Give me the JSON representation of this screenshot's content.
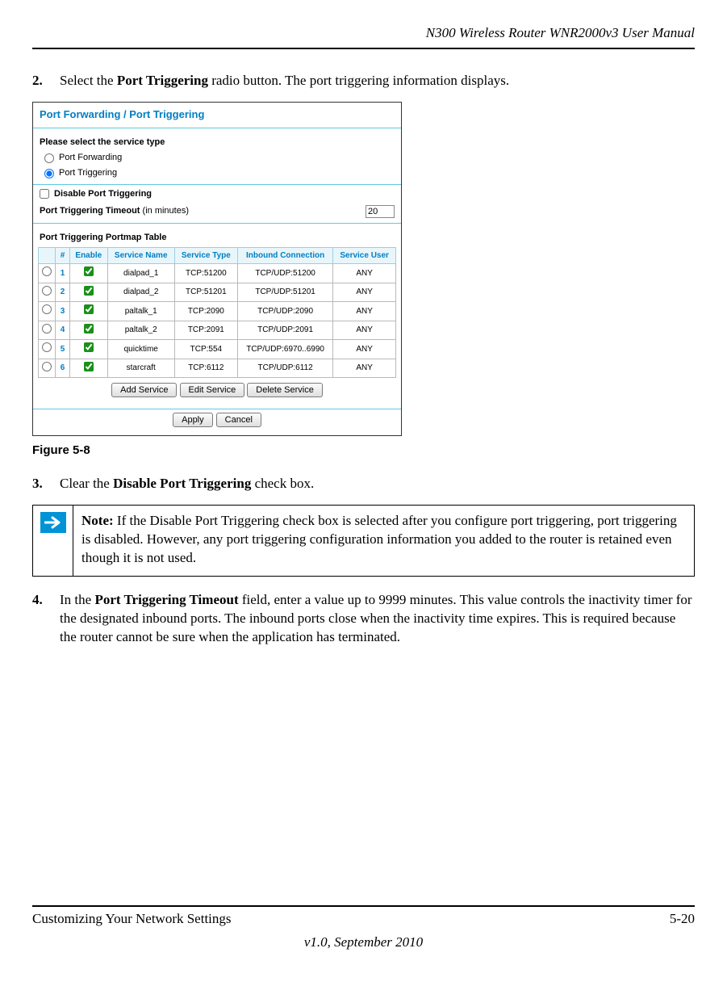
{
  "doc": {
    "header_title": "N300 Wireless Router WNR2000v3 User Manual",
    "footer_left": "Customizing Your Network Settings",
    "footer_right": "5-20",
    "footer_center": "v1.0, September 2010",
    "figure_caption": "Figure 5-8"
  },
  "steps": {
    "s2_num": "2.",
    "s2_pre": "Select the ",
    "s2_bold": "Port Triggering",
    "s2_post": " radio button. The port triggering information displays.",
    "s3_num": "3.",
    "s3_pre": "Clear the ",
    "s3_bold": "Disable Port Triggering",
    "s3_post": " check box.",
    "s4_num": "4.",
    "s4_pre": "In the ",
    "s4_bold": "Port Triggering Timeout",
    "s4_post": " field, enter a value up to 9999 minutes. This value controls the inactivity timer for the designated inbound ports. The inbound ports close when the inactivity time expires. This is required because the router cannot be sure when the application has terminated."
  },
  "note": {
    "label": "Note:",
    "text": " If the Disable Port Triggering check box is selected after you configure port triggering, port triggering is disabled. However, any port triggering configuration information you added to the router is retained even though it is not used.",
    "icon_bg": "#0093d6",
    "icon_fg": "#ffffff"
  },
  "ui": {
    "title": "Port Forwarding / Port Triggering",
    "select_label": "Please select the service type",
    "radio_fwd": "Port Forwarding",
    "radio_trg": "Port Triggering",
    "disable_label": "Disable Port Triggering",
    "timeout_label": "Port Triggering Timeout",
    "timeout_suffix": " (in minutes)",
    "timeout_value": "20",
    "table_label": "Port Triggering Portmap Table",
    "cols": {
      "sel": "",
      "num": "#",
      "en": "Enable",
      "name": "Service Name",
      "type": "Service Type",
      "inbound": "Inbound Connection",
      "user": "Service User"
    },
    "rows": [
      {
        "num": "1",
        "name": "dialpad_1",
        "type": "TCP:51200",
        "inbound": "TCP/UDP:51200",
        "user": "ANY"
      },
      {
        "num": "2",
        "name": "dialpad_2",
        "type": "TCP:51201",
        "inbound": "TCP/UDP:51201",
        "user": "ANY"
      },
      {
        "num": "3",
        "name": "paltalk_1",
        "type": "TCP:2090",
        "inbound": "TCP/UDP:2090",
        "user": "ANY"
      },
      {
        "num": "4",
        "name": "paltalk_2",
        "type": "TCP:2091",
        "inbound": "TCP/UDP:2091",
        "user": "ANY"
      },
      {
        "num": "5",
        "name": "quicktime",
        "type": "TCP:554",
        "inbound": "TCP/UDP:6970..6990",
        "user": "ANY"
      },
      {
        "num": "6",
        "name": "starcraft",
        "type": "TCP:6112",
        "inbound": "TCP/UDP:6112",
        "user": "ANY"
      }
    ],
    "btn_add": "Add Service",
    "btn_edit": "Edit Service",
    "btn_delete": "Delete Service",
    "btn_apply": "Apply",
    "btn_cancel": "Cancel",
    "colors": {
      "accent": "#007ec3",
      "hr": "#5fc9e7",
      "th_bg": "#e8f6fb",
      "th_border": "#9ecede",
      "td_border": "#b9b9b9"
    }
  }
}
